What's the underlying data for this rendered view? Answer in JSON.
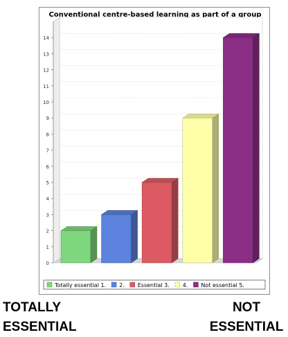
{
  "chart_data": {
    "type": "bar",
    "title": "Conventional centre-based learning as part of a group",
    "categories": [
      "1.",
      "2.",
      "3.",
      "4.",
      "5."
    ],
    "values": [
      2,
      3,
      5,
      9,
      14
    ],
    "colors": [
      "#7ed67e",
      "#5b82dc",
      "#dc5b63",
      "#ffffaa",
      "#8b2f86"
    ],
    "yticks": [
      0,
      1,
      2,
      3,
      4,
      5,
      6,
      7,
      8,
      9,
      10,
      11,
      12,
      13,
      14
    ],
    "ylim": [
      0,
      15
    ],
    "grid": true,
    "legend_position": "bottom",
    "legend": [
      {
        "label": "Totally essential  1."
      },
      {
        "label": "2."
      },
      {
        "label": "Essential  3."
      },
      {
        "label": "4."
      },
      {
        "label": "Not essential  5."
      }
    ],
    "xlabel": "",
    "ylabel": ""
  },
  "footer": {
    "left": [
      "TOTALLY",
      "ESSENTIAL"
    ],
    "right": [
      "NOT",
      "ESSENTIAL"
    ]
  }
}
